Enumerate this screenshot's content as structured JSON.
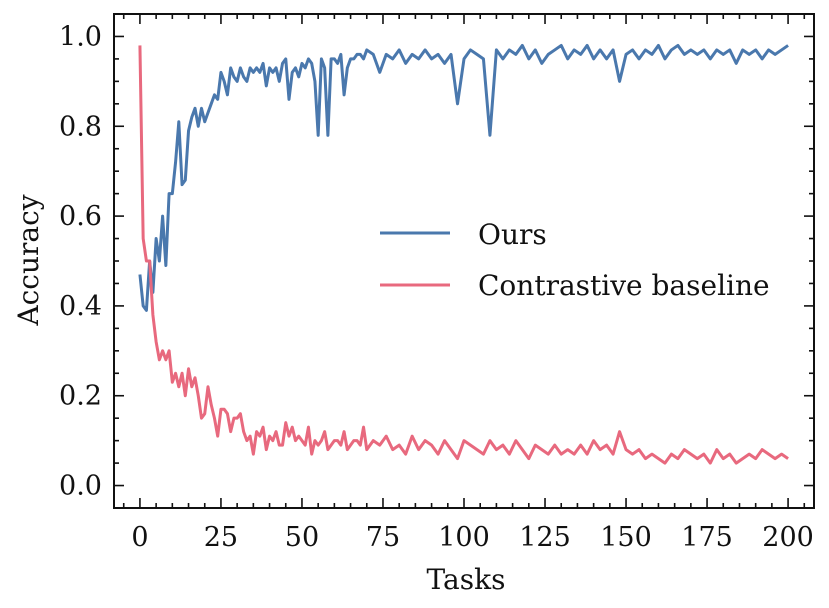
{
  "chart_data": {
    "type": "line",
    "title": "",
    "xlabel": "Tasks",
    "ylabel": "Accuracy",
    "xlim": [
      -8,
      208
    ],
    "ylim": [
      -0.05,
      1.05
    ],
    "xticks": [
      0,
      25,
      50,
      75,
      100,
      125,
      150,
      175,
      200
    ],
    "yticks": [
      0.0,
      0.2,
      0.4,
      0.6,
      0.8,
      1.0
    ],
    "xtick_labels": [
      "0",
      "25",
      "50",
      "75",
      "100",
      "125",
      "150",
      "175",
      "200"
    ],
    "ytick_labels": [
      "0.0",
      "0.2",
      "0.4",
      "0.6",
      "0.8",
      "1.0"
    ],
    "grid": false,
    "legend_position": "center-right",
    "series": [
      {
        "name": "Ours",
        "color": "#4a78ad",
        "x": [
          0,
          1,
          2,
          3,
          4,
          5,
          6,
          7,
          8,
          9,
          10,
          11,
          12,
          13,
          14,
          15,
          16,
          17,
          18,
          19,
          20,
          21,
          22,
          23,
          24,
          25,
          26,
          27,
          28,
          29,
          30,
          31,
          32,
          33,
          34,
          35,
          36,
          37,
          38,
          39,
          40,
          41,
          42,
          43,
          44,
          45,
          46,
          47,
          48,
          49,
          50,
          51,
          52,
          53,
          54,
          55,
          56,
          57,
          58,
          59,
          60,
          61,
          62,
          63,
          64,
          65,
          66,
          67,
          68,
          69,
          70,
          72,
          74,
          76,
          78,
          80,
          82,
          84,
          86,
          88,
          90,
          92,
          94,
          96,
          98,
          100,
          102,
          104,
          106,
          108,
          110,
          112,
          114,
          116,
          118,
          120,
          122,
          124,
          126,
          128,
          130,
          132,
          134,
          136,
          138,
          140,
          142,
          144,
          146,
          148,
          150,
          152,
          154,
          156,
          158,
          160,
          162,
          164,
          166,
          168,
          170,
          172,
          174,
          176,
          178,
          180,
          182,
          184,
          186,
          188,
          190,
          192,
          194,
          196,
          198,
          200
        ],
        "values": [
          0.47,
          0.4,
          0.39,
          0.5,
          0.43,
          0.55,
          0.5,
          0.6,
          0.49,
          0.65,
          0.65,
          0.72,
          0.81,
          0.67,
          0.68,
          0.79,
          0.82,
          0.84,
          0.8,
          0.84,
          0.81,
          0.83,
          0.85,
          0.87,
          0.86,
          0.92,
          0.9,
          0.87,
          0.93,
          0.91,
          0.9,
          0.93,
          0.91,
          0.9,
          0.93,
          0.92,
          0.93,
          0.92,
          0.94,
          0.89,
          0.93,
          0.92,
          0.93,
          0.9,
          0.94,
          0.95,
          0.86,
          0.92,
          0.93,
          0.91,
          0.94,
          0.93,
          0.95,
          0.94,
          0.9,
          0.78,
          0.95,
          0.93,
          0.78,
          0.95,
          0.95,
          0.94,
          0.96,
          0.87,
          0.93,
          0.95,
          0.95,
          0.96,
          0.96,
          0.95,
          0.97,
          0.96,
          0.92,
          0.96,
          0.95,
          0.97,
          0.94,
          0.96,
          0.95,
          0.97,
          0.95,
          0.96,
          0.94,
          0.96,
          0.85,
          0.95,
          0.97,
          0.96,
          0.95,
          0.78,
          0.97,
          0.95,
          0.97,
          0.96,
          0.98,
          0.95,
          0.97,
          0.94,
          0.96,
          0.97,
          0.98,
          0.95,
          0.97,
          0.96,
          0.98,
          0.95,
          0.97,
          0.95,
          0.97,
          0.9,
          0.96,
          0.97,
          0.95,
          0.97,
          0.96,
          0.98,
          0.95,
          0.97,
          0.98,
          0.96,
          0.97,
          0.96,
          0.97,
          0.95,
          0.97,
          0.96,
          0.97,
          0.94,
          0.97,
          0.96,
          0.97,
          0.95,
          0.97,
          0.96,
          0.97,
          0.98
        ]
      },
      {
        "name": "Contrastive baseline",
        "color": "#e8697e",
        "x": [
          0,
          1,
          2,
          3,
          4,
          5,
          6,
          7,
          8,
          9,
          10,
          11,
          12,
          13,
          14,
          15,
          16,
          17,
          18,
          19,
          20,
          21,
          22,
          23,
          24,
          25,
          26,
          27,
          28,
          29,
          30,
          31,
          32,
          33,
          34,
          35,
          36,
          37,
          38,
          39,
          40,
          41,
          42,
          43,
          44,
          45,
          46,
          47,
          48,
          49,
          50,
          51,
          52,
          53,
          54,
          55,
          56,
          57,
          58,
          59,
          60,
          61,
          62,
          63,
          64,
          65,
          66,
          67,
          68,
          69,
          70,
          72,
          74,
          76,
          78,
          80,
          82,
          84,
          86,
          88,
          90,
          92,
          94,
          96,
          98,
          100,
          102,
          104,
          106,
          108,
          110,
          112,
          114,
          116,
          118,
          120,
          122,
          124,
          126,
          128,
          130,
          132,
          134,
          136,
          138,
          140,
          142,
          144,
          146,
          148,
          150,
          152,
          154,
          156,
          158,
          160,
          162,
          164,
          166,
          168,
          170,
          172,
          174,
          176,
          178,
          180,
          182,
          184,
          186,
          188,
          190,
          192,
          194,
          196,
          198,
          200
        ],
        "values": [
          0.98,
          0.55,
          0.5,
          0.5,
          0.38,
          0.32,
          0.28,
          0.3,
          0.28,
          0.3,
          0.23,
          0.25,
          0.22,
          0.25,
          0.2,
          0.26,
          0.22,
          0.24,
          0.2,
          0.15,
          0.16,
          0.22,
          0.18,
          0.15,
          0.11,
          0.17,
          0.17,
          0.16,
          0.12,
          0.15,
          0.15,
          0.16,
          0.12,
          0.1,
          0.11,
          0.07,
          0.12,
          0.11,
          0.13,
          0.08,
          0.11,
          0.1,
          0.12,
          0.09,
          0.09,
          0.14,
          0.11,
          0.13,
          0.1,
          0.11,
          0.1,
          0.09,
          0.13,
          0.07,
          0.1,
          0.09,
          0.1,
          0.12,
          0.08,
          0.09,
          0.1,
          0.1,
          0.09,
          0.12,
          0.08,
          0.09,
          0.1,
          0.1,
          0.09,
          0.13,
          0.08,
          0.1,
          0.09,
          0.11,
          0.08,
          0.09,
          0.07,
          0.11,
          0.08,
          0.1,
          0.09,
          0.07,
          0.1,
          0.08,
          0.06,
          0.1,
          0.09,
          0.08,
          0.07,
          0.1,
          0.08,
          0.09,
          0.07,
          0.1,
          0.08,
          0.06,
          0.09,
          0.08,
          0.07,
          0.09,
          0.07,
          0.08,
          0.07,
          0.09,
          0.07,
          0.1,
          0.08,
          0.09,
          0.07,
          0.12,
          0.08,
          0.07,
          0.08,
          0.06,
          0.07,
          0.06,
          0.05,
          0.07,
          0.06,
          0.08,
          0.07,
          0.06,
          0.07,
          0.05,
          0.08,
          0.06,
          0.07,
          0.05,
          0.06,
          0.07,
          0.06,
          0.08,
          0.07,
          0.06,
          0.07,
          0.06
        ]
      }
    ]
  }
}
